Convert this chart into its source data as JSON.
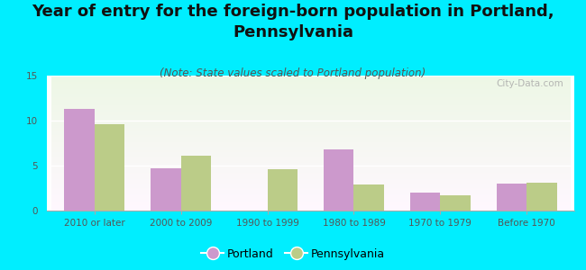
{
  "title": "Year of entry for the foreign-born population in Portland,\nPennsylvania",
  "subtitle": "(Note: State values scaled to Portland population)",
  "categories": [
    "2010 or later",
    "2000 to 2009",
    "1990 to 1999",
    "1980 to 1989",
    "1970 to 1979",
    "Before 1970"
  ],
  "portland_values": [
    11.3,
    4.7,
    0,
    6.8,
    2.0,
    3.0
  ],
  "pennsylvania_values": [
    9.6,
    6.1,
    4.6,
    2.9,
    1.7,
    3.1
  ],
  "portland_color": "#cc99cc",
  "pennsylvania_color": "#bbcc88",
  "background_color": "#00eeff",
  "ylim": [
    0,
    15
  ],
  "yticks": [
    0,
    5,
    10,
    15
  ],
  "bar_width": 0.35,
  "title_fontsize": 13,
  "subtitle_fontsize": 8.5,
  "tick_fontsize": 7.5,
  "legend_fontsize": 9,
  "watermark": "City-Data.com"
}
